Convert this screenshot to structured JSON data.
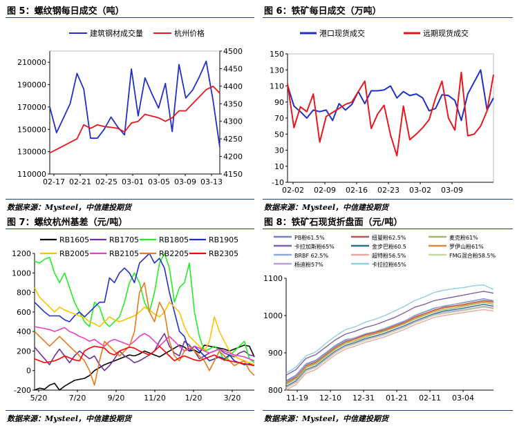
{
  "panels": {
    "p5": {
      "title": "图 5：螺纹钢每日成交（吨）",
      "source": "数据来源：Mysteel，中信建投期货"
    },
    "p6": {
      "title": "图 6：铁矿每日成交（万吨）",
      "source": "数据来源：Mysteel，中信建投期货"
    },
    "p7": {
      "title": "图 7：螺纹杭州基差（元/吨）",
      "source": "数据来源：Mysteel，中信建投期货"
    },
    "p8": {
      "title": "图 8：铁矿石现货折盘面（元/吨）",
      "source": "数据来源：Mysteel，中信建投期货"
    }
  },
  "chart_data": [
    {
      "id": "c5",
      "type": "line",
      "x_ticks": [
        "02-17",
        "02-21",
        "02-25",
        "03-01",
        "03-05",
        "03-09",
        "03-13"
      ],
      "y_ticks_left": [
        "110000",
        "130000",
        "150000",
        "170000",
        "190000",
        "210000"
      ],
      "y_ticks_right": [
        "4150",
        "4200",
        "4250",
        "4300",
        "4350",
        "4400",
        "4450",
        "4500"
      ],
      "ylim_left": [
        110000,
        220000
      ],
      "ylim_right": [
        4150,
        4500
      ],
      "xlim": [
        0,
        27
      ],
      "series": [
        {
          "name": "建筑钢材成交量",
          "color": "#1f2fc8",
          "axis": "left",
          "values": [
            170000,
            147000,
            160000,
            173000,
            200000,
            186000,
            142000,
            142000,
            150000,
            161000,
            152000,
            145000,
            204000,
            162000,
            196000,
            182000,
            169000,
            191000,
            148000,
            208000,
            178000,
            185000,
            197000,
            211000,
            176000,
            134000
          ]
        },
        {
          "name": "杭州价格",
          "color": "#e8161c",
          "axis": "right",
          "values": [
            4210,
            4220,
            4230,
            4240,
            4250,
            4290,
            4280,
            4290,
            4285,
            4283,
            4280,
            4270,
            4295,
            4300,
            4320,
            4315,
            4310,
            4300,
            4310,
            4330,
            4330,
            4350,
            4370,
            4390,
            4400,
            4380
          ]
        }
      ]
    },
    {
      "id": "c6",
      "type": "line",
      "x_ticks": [
        "02-02",
        "02-09",
        "02-16",
        "02-23",
        "03-02",
        "03-09"
      ],
      "y_ticks": [
        "-10",
        "10",
        "30",
        "50",
        "70",
        "90",
        "110",
        "130",
        "150"
      ],
      "ylim": [
        -10,
        150
      ],
      "xlim": [
        0,
        32
      ],
      "series": [
        {
          "name": "港口现货成交",
          "color": "#1f2fc8",
          "values": [
            111,
            85,
            78,
            70,
            80,
            78,
            80,
            67,
            88,
            80,
            87,
            103,
            88,
            104,
            104,
            105,
            110,
            95,
            103,
            98,
            100,
            95,
            79,
            82,
            99,
            98,
            92,
            67,
            100,
            115,
            130,
            80,
            95
          ]
        },
        {
          "name": "远期现货成交",
          "color": "#e8161c",
          "values": [
            113,
            58,
            84,
            78,
            100,
            40,
            72,
            77,
            82,
            87,
            90,
            103,
            116,
            57,
            75,
            86,
            49,
            23,
            85,
            43,
            50,
            58,
            68,
            95,
            116,
            70,
            55,
            127,
            48,
            50,
            60,
            79,
            124
          ]
        }
      ]
    },
    {
      "id": "c7",
      "type": "line",
      "x_ticks": [
        "5/20",
        "7/20",
        "9/20",
        "11/20",
        "1/20",
        "3/20"
      ],
      "y_ticks": [
        "-200",
        "0",
        "200",
        "400",
        "600",
        "800",
        "1000",
        "1200"
      ],
      "ylim": [
        -200,
        1200
      ],
      "xlim": [
        0,
        320
      ],
      "series": [
        {
          "name": "RB1605",
          "color": "#000000",
          "values": [
            -200,
            -180,
            -190,
            -150,
            -130,
            -200,
            -160,
            -130,
            -100,
            -90,
            -80,
            -50,
            0,
            30,
            60,
            80,
            100,
            120,
            140,
            160,
            150,
            170,
            200,
            180,
            160,
            140,
            170,
            200,
            230,
            260,
            240,
            200,
            210,
            180,
            260,
            250,
            240,
            230,
            220,
            200,
            220,
            240,
            260,
            250,
            140
          ]
        },
        {
          "name": "RB1705",
          "color": "#7030a0",
          "values": [
            240,
            180,
            120,
            60,
            150,
            220,
            150,
            80,
            150,
            200,
            160,
            120,
            150,
            60,
            0,
            50,
            120,
            200,
            150,
            120,
            80,
            100,
            130,
            160,
            200,
            300,
            380,
            250,
            180,
            150,
            300,
            260,
            200,
            120,
            150,
            180,
            200,
            220,
            180,
            160,
            140,
            180,
            200,
            160,
            150
          ]
        },
        {
          "name": "RB1805",
          "color": "#22ee22",
          "values": [
            1120,
            1100,
            1140,
            1160,
            1000,
            900,
            1000,
            850,
            700,
            600,
            500,
            450,
            700,
            650,
            500,
            450,
            500,
            550,
            700,
            900,
            1000,
            900,
            700,
            600,
            800,
            1100,
            1200,
            1050,
            700,
            850,
            900,
            1100,
            600,
            350,
            200,
            220,
            250,
            200,
            100,
            150,
            200,
            250,
            300,
            120,
            80
          ]
        },
        {
          "name": "RB1905",
          "color": "#1f2fc8",
          "values": [
            700,
            650,
            600,
            560,
            560,
            560,
            520,
            500,
            560,
            600,
            550,
            600,
            650,
            700,
            700,
            950,
            900,
            1000,
            1050,
            1000,
            900,
            1100,
            1150,
            1200,
            1100,
            1150,
            1050,
            800,
            600,
            400,
            350,
            200,
            250,
            200,
            150,
            100,
            120,
            140,
            120,
            160,
            100,
            80,
            60,
            70,
            60
          ]
        },
        {
          "name": "RB2005",
          "color": "#ffc000",
          "values": [
            850,
            750,
            700,
            650,
            600,
            650,
            620,
            600,
            580,
            560,
            540,
            500,
            480,
            450,
            500,
            550,
            520,
            500,
            520,
            540,
            560,
            600,
            650,
            620,
            580,
            550,
            600,
            700,
            650,
            600,
            450,
            350,
            300,
            250,
            200,
            300,
            550,
            400,
            300,
            200,
            150,
            120,
            100,
            80,
            60
          ]
        },
        {
          "name": "RB2105",
          "color": "#e83dc8",
          "values": [
            450,
            440,
            430,
            420,
            400,
            420,
            440,
            400,
            380,
            350,
            330,
            300,
            320,
            280,
            250,
            300,
            320,
            300,
            280,
            260,
            300,
            350,
            380,
            350,
            300,
            250,
            300,
            350,
            300,
            250,
            200,
            220,
            250,
            230,
            200,
            180,
            200,
            220,
            200,
            180,
            160,
            150,
            140,
            120,
            100
          ]
        },
        {
          "name": "RB2205",
          "color": "#e87818",
          "values": [
            400,
            350,
            300,
            250,
            300,
            350,
            300,
            250,
            200,
            150,
            100,
            0,
            -150,
            100,
            300,
            250,
            200,
            150,
            200,
            250,
            400,
            800,
            900,
            600,
            500,
            700,
            600,
            300,
            150,
            100,
            200,
            250,
            200,
            150,
            100,
            0,
            100,
            200,
            150,
            100,
            50,
            80,
            100,
            0,
            -50
          ]
        },
        {
          "name": "RB2305",
          "color": "#ff0000",
          "values": [
            120,
            100,
            80,
            90,
            100,
            120,
            150,
            130,
            110,
            100,
            200,
            230,
            250,
            240,
            230,
            180,
            160,
            200,
            220,
            240,
            230,
            200,
            180,
            160,
            200,
            250,
            200,
            150,
            100,
            130,
            150,
            130,
            110,
            100,
            120,
            140,
            160,
            130,
            110,
            100,
            90,
            80,
            70,
            60,
            50
          ]
        }
      ]
    },
    {
      "id": "c8",
      "type": "line",
      "x_ticks": [
        "11-19",
        "12-10",
        "12-31",
        "01-21",
        "02-11",
        "03-04"
      ],
      "y_ticks": [
        "800",
        "900",
        "1000",
        "1100"
      ],
      "ylim": [
        800,
        1100
      ],
      "xlim": [
        0,
        112
      ],
      "series": [
        {
          "name": "PB粉61.5%",
          "color": "#6a83c4",
          "values": [
            825,
            840,
            870,
            880,
            900,
            920,
            935,
            940,
            950,
            955,
            965,
            975,
            985,
            1000,
            1010,
            1020,
            1025,
            1030,
            1035,
            1040,
            1045,
            1040
          ]
        },
        {
          "name": "纽曼粉62.5%",
          "color": "#c0504d",
          "values": [
            820,
            835,
            865,
            875,
            895,
            915,
            930,
            938,
            948,
            955,
            962,
            972,
            982,
            996,
            1005,
            1015,
            1022,
            1026,
            1030,
            1035,
            1040,
            1038
          ]
        },
        {
          "name": "麦克粉61%",
          "color": "#9bbb59",
          "values": [
            815,
            830,
            860,
            870,
            890,
            910,
            925,
            932,
            942,
            950,
            958,
            968,
            978,
            990,
            1000,
            1010,
            1016,
            1020,
            1025,
            1030,
            1035,
            1030
          ]
        },
        {
          "name": "卡拉加斯粉65%",
          "color": "#7d62a6",
          "values": [
            840,
            855,
            885,
            895,
            915,
            935,
            950,
            958,
            968,
            975,
            985,
            995,
            1008,
            1022,
            1030,
            1040,
            1045,
            1050,
            1055,
            1060,
            1065,
            1060
          ]
        },
        {
          "name": "金步巴粉60.5",
          "color": "#2f6e8a",
          "values": [
            810,
            825,
            855,
            865,
            885,
            905,
            920,
            928,
            938,
            945,
            953,
            963,
            973,
            985,
            995,
            1005,
            1012,
            1016,
            1020,
            1025,
            1030,
            1025
          ]
        },
        {
          "name": "罗伊山粉61%",
          "color": "#e0883a",
          "values": [
            818,
            833,
            863,
            873,
            893,
            913,
            928,
            936,
            946,
            952,
            960,
            970,
            980,
            993,
            1003,
            1013,
            1020,
            1024,
            1028,
            1033,
            1038,
            1034
          ]
        },
        {
          "name": "BRBF 62.5%",
          "color": "#8ea6d8",
          "values": [
            822,
            838,
            868,
            878,
            898,
            918,
            933,
            941,
            951,
            957,
            966,
            976,
            986,
            999,
            1009,
            1019,
            1026,
            1030,
            1034,
            1039,
            1044,
            1040
          ]
        },
        {
          "name": "超特粉56.5%",
          "color": "#e6a7a5",
          "values": [
            800,
            815,
            845,
            855,
            875,
            895,
            910,
            918,
            928,
            935,
            943,
            953,
            963,
            975,
            985,
            995,
            1000,
            1004,
            1008,
            1012,
            1016,
            1012
          ]
        },
        {
          "name": "FMG混合粉58.5%",
          "color": "#c6d9a0",
          "values": [
            805,
            820,
            850,
            860,
            880,
            900,
            915,
            923,
            933,
            940,
            948,
            958,
            968,
            980,
            990,
            1000,
            1005,
            1009,
            1013,
            1018,
            1022,
            1018
          ]
        },
        {
          "name": "杨迪粉57%",
          "color": "#b5a4cf",
          "values": [
            808,
            823,
            853,
            863,
            883,
            903,
            918,
            926,
            936,
            943,
            951,
            961,
            971,
            983,
            993,
            1003,
            1008,
            1012,
            1016,
            1020,
            1025,
            1020
          ]
        },
        {
          "name": "卡拉拉粉65%",
          "color": "#92cddc",
          "values": [
            845,
            862,
            892,
            902,
            925,
            945,
            962,
            970,
            982,
            990,
            1000,
            1012,
            1025,
            1040,
            1050,
            1062,
            1068,
            1072,
            1075,
            1080,
            1082,
            1070
          ]
        }
      ]
    }
  ]
}
